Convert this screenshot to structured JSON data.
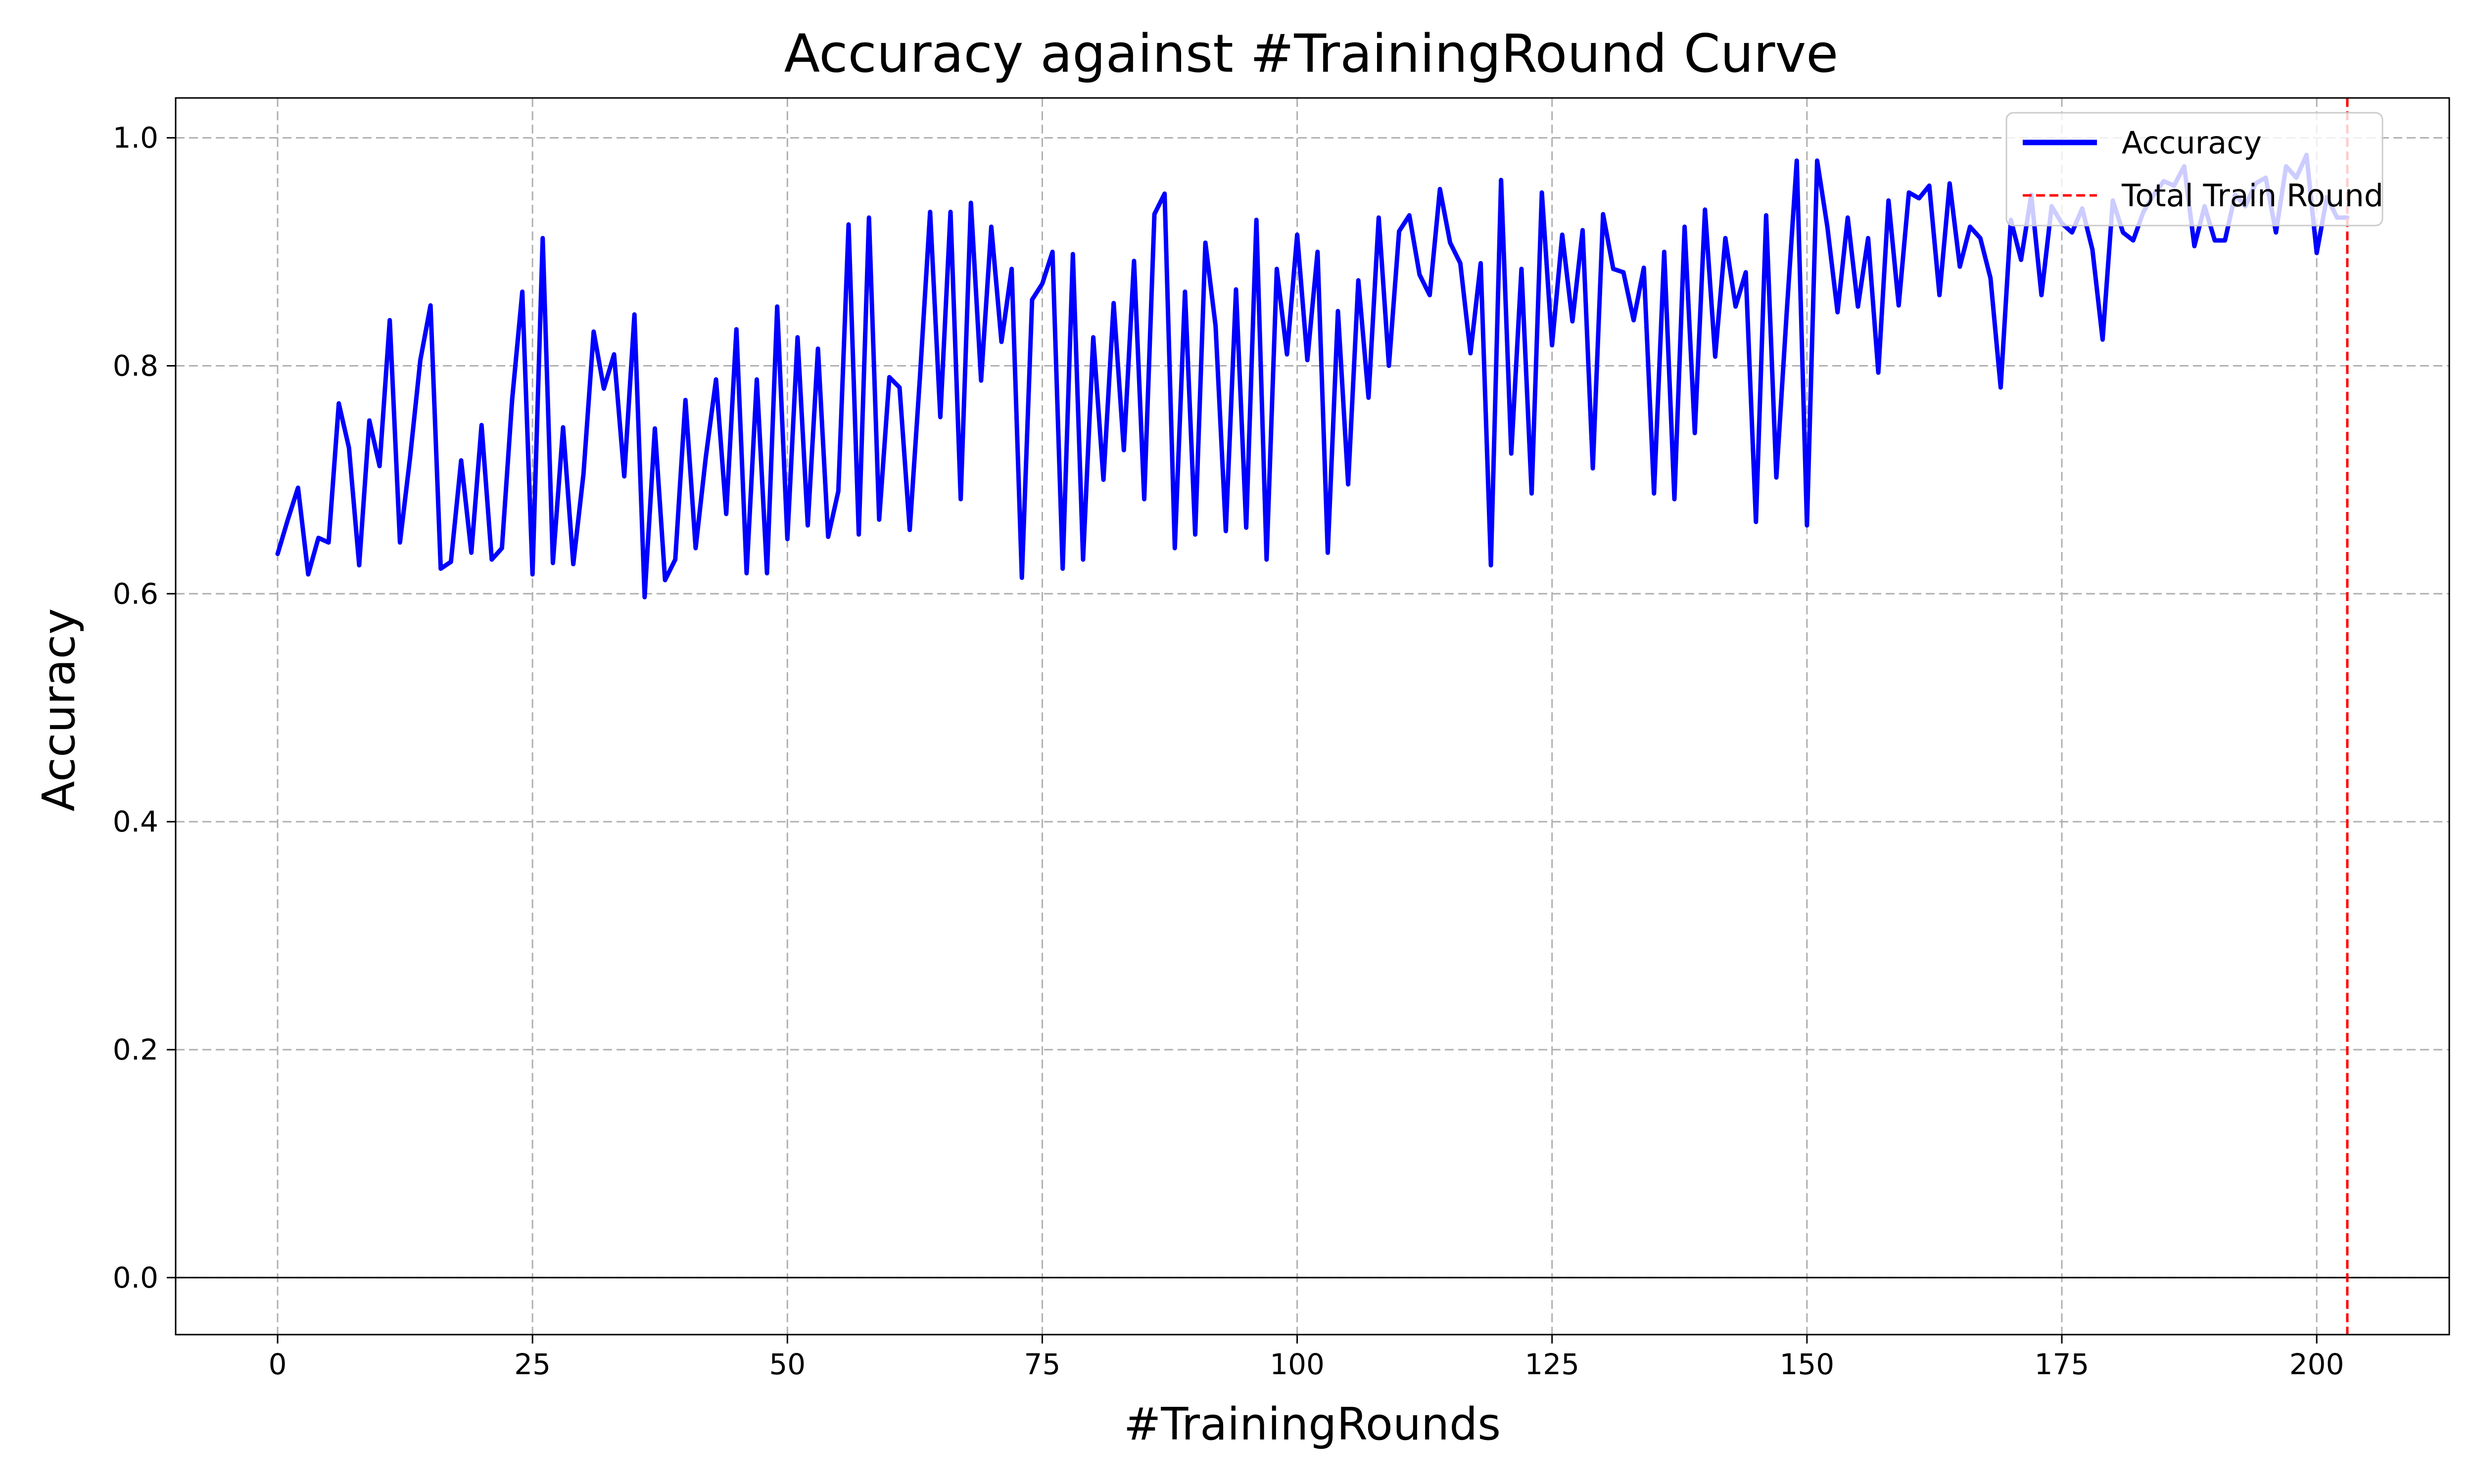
{
  "chart_data": {
    "type": "line",
    "title": "Accuracy against #TrainingRound Curve",
    "xlabel": "#TrainingRounds",
    "ylabel": "Accuracy",
    "xlim": [
      -10,
      213
    ],
    "ylim": [
      -0.05,
      1.035
    ],
    "xticks": [
      0,
      25,
      50,
      75,
      100,
      125,
      150,
      175,
      200
    ],
    "xtick_labels": [
      "0",
      "25",
      "50",
      "75",
      "100",
      "125",
      "150",
      "175",
      "200"
    ],
    "yticks": [
      0.0,
      0.2,
      0.4,
      0.6,
      0.8,
      1.0
    ],
    "ytick_labels": [
      "0.0",
      "0.2",
      "0.4",
      "0.6",
      "0.8",
      "1.0"
    ],
    "grid": true,
    "legend_position": "top-right",
    "reference_hline": 0.0,
    "series": [
      {
        "name": "Accuracy",
        "color": "#0000ff",
        "style": "solid",
        "x": [
          0,
          1,
          2,
          3,
          4,
          5,
          6,
          7,
          8,
          9,
          10,
          11,
          12,
          13,
          14,
          15,
          16,
          17,
          18,
          19,
          20,
          21,
          22,
          23,
          24,
          25,
          26,
          27,
          28,
          29,
          30,
          31,
          32,
          33,
          34,
          35,
          36,
          37,
          38,
          39,
          40,
          41,
          42,
          43,
          44,
          45,
          46,
          47,
          48,
          49,
          50,
          51,
          52,
          53,
          54,
          55,
          56,
          57,
          58,
          59,
          60,
          61,
          62,
          63,
          64,
          65,
          66,
          67,
          68,
          69,
          70,
          71,
          72,
          73,
          74,
          75,
          76,
          77,
          78,
          79,
          80,
          81,
          82,
          83,
          84,
          85,
          86,
          87,
          88,
          89,
          90,
          91,
          92,
          93,
          94,
          95,
          96,
          97,
          98,
          99,
          100,
          101,
          102,
          103,
          104,
          105,
          106,
          107,
          108,
          109,
          110,
          111,
          112,
          113,
          114,
          115,
          116,
          117,
          118,
          119,
          120,
          121,
          122,
          123,
          124,
          125,
          126,
          127,
          128,
          129,
          130,
          131,
          132,
          133,
          134,
          135,
          136,
          137,
          138,
          139,
          140,
          141,
          142,
          143,
          144,
          145,
          146,
          147,
          148,
          149,
          150,
          151,
          152,
          153,
          154,
          155,
          156,
          157,
          158,
          159,
          160,
          161,
          162,
          163,
          164,
          165,
          166,
          167,
          168,
          169,
          170,
          171,
          172,
          173,
          174,
          175,
          176,
          177,
          178,
          179,
          180,
          181,
          182,
          183,
          184,
          185,
          186,
          187,
          188,
          189,
          190,
          191,
          192,
          193,
          194,
          195,
          196,
          197,
          198,
          199,
          200,
          201,
          202,
          203
        ],
        "y": [
          0.635,
          0.665,
          0.693,
          0.617,
          0.649,
          0.645,
          0.767,
          0.728,
          0.625,
          0.752,
          0.712,
          0.84,
          0.645,
          0.72,
          0.805,
          0.853,
          0.622,
          0.628,
          0.717,
          0.636,
          0.748,
          0.63,
          0.64,
          0.77,
          0.865,
          0.617,
          0.912,
          0.627,
          0.746,
          0.626,
          0.705,
          0.83,
          0.78,
          0.81,
          0.703,
          0.845,
          0.597,
          0.745,
          0.612,
          0.63,
          0.77,
          0.64,
          0.72,
          0.788,
          0.67,
          0.832,
          0.618,
          0.788,
          0.618,
          0.852,
          0.648,
          0.825,
          0.66,
          0.815,
          0.65,
          0.69,
          0.924,
          0.652,
          0.93,
          0.665,
          0.79,
          0.781,
          0.656,
          0.79,
          0.935,
          0.755,
          0.935,
          0.683,
          0.943,
          0.787,
          0.922,
          0.821,
          0.885,
          0.614,
          0.858,
          0.872,
          0.9,
          0.622,
          0.898,
          0.63,
          0.825,
          0.7,
          0.855,
          0.726,
          0.892,
          0.683,
          0.933,
          0.951,
          0.64,
          0.865,
          0.652,
          0.908,
          0.835,
          0.655,
          0.867,
          0.658,
          0.928,
          0.63,
          0.885,
          0.81,
          0.915,
          0.805,
          0.9,
          0.636,
          0.848,
          0.696,
          0.875,
          0.772,
          0.93,
          0.8,
          0.918,
          0.932,
          0.88,
          0.862,
          0.955,
          0.908,
          0.89,
          0.811,
          0.89,
          0.625,
          0.963,
          0.723,
          0.885,
          0.688,
          0.952,
          0.818,
          0.915,
          0.839,
          0.919,
          0.71,
          0.933,
          0.885,
          0.882,
          0.84,
          0.886,
          0.688,
          0.9,
          0.683,
          0.922,
          0.741,
          0.937,
          0.808,
          0.912,
          0.852,
          0.882,
          0.663,
          0.932,
          0.702,
          0.845,
          0.98,
          0.66,
          0.98,
          0.922,
          0.847,
          0.93,
          0.852,
          0.912,
          0.794,
          0.945,
          0.853,
          0.952,
          0.947,
          0.958,
          0.862,
          0.96,
          0.887,
          0.922,
          0.912,
          0.877,
          0.781,
          0.928,
          0.893,
          0.95,
          0.862,
          0.94,
          0.925,
          0.917,
          0.938,
          0.902,
          0.823,
          0.945,
          0.917,
          0.91,
          0.935,
          0.95,
          0.962,
          0.958,
          0.975,
          0.905,
          0.94,
          0.91,
          0.91,
          0.95,
          0.94,
          0.96,
          0.965,
          0.917,
          0.975,
          0.965,
          0.985,
          0.899,
          0.948,
          0.93,
          0.93
        ]
      },
      {
        "name": "Total Train Round",
        "color": "#ff0000",
        "style": "dashed",
        "x_value": 203
      }
    ]
  }
}
